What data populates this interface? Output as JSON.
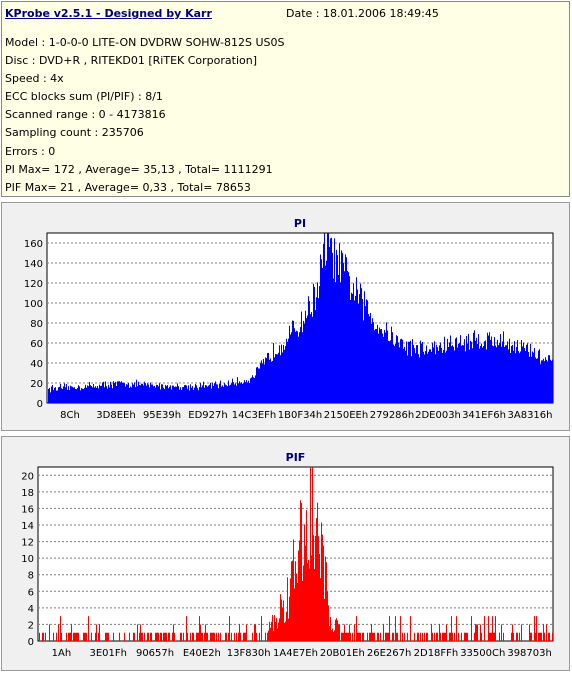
{
  "header": {
    "title": "KProbe v2.5.1 - Designed by Karr",
    "date": "Date : 18.01.2006 18:49:45",
    "lines": [
      "Model : 1-0-0-0 LITE-ON DVDRW SOHW-812S  US0S",
      "Disc : DVD+R , RITEKD01 [RiTEK Corporation]",
      "Speed : 4x",
      "ECC blocks sum (PI/PIF) : 8/1",
      "Scanned range : 0 - 4173816",
      "Sampling count : 235706",
      "Errors : 0",
      "PI Max= 172 , Average= 35,13 , Total= 1111291",
      "PIF Max= 21 , Average= 0,33 , Total= 78653"
    ]
  },
  "colors": {
    "info_background": "#ffffe6",
    "panel_background": "#f0f0f0",
    "title_color": "#000080",
    "pi_color": "#0000ff",
    "pif_color": "#ff0000"
  },
  "chart_data": [
    {
      "type": "bar",
      "title": "PI",
      "xlabel": "",
      "ylabel": "",
      "ylim": [
        0,
        170
      ],
      "y_ticks": [
        0,
        20,
        40,
        60,
        80,
        100,
        120,
        140,
        160
      ],
      "x_tick_labels": [
        "8Ch",
        "3D8EEh",
        "95E39h",
        "ED927h",
        "14C3EFh",
        "1B0F34h",
        "2150EEh",
        "279286h",
        "2DE003h",
        "341EF6h",
        "3A8316h"
      ],
      "grid": true,
      "color": "#0000ff",
      "x": [
        0,
        0.05,
        0.1,
        0.15,
        0.2,
        0.25,
        0.3,
        0.35,
        0.4,
        0.42,
        0.45,
        0.5,
        0.53,
        0.555,
        0.56,
        0.58,
        0.6,
        0.65,
        0.7,
        0.75,
        0.8,
        0.85,
        0.9,
        0.95,
        1.0
      ],
      "values": [
        15,
        16,
        18,
        20,
        18,
        17,
        17,
        19,
        24,
        35,
        55,
        80,
        110,
        168,
        150,
        140,
        120,
        82,
        60,
        54,
        60,
        65,
        63,
        55,
        40
      ]
    },
    {
      "type": "bar",
      "title": "PIF",
      "xlabel": "",
      "ylabel": "",
      "ylim": [
        0,
        21
      ],
      "y_ticks": [
        0,
        2,
        4,
        6,
        8,
        10,
        12,
        14,
        16,
        18,
        20
      ],
      "x_tick_labels": [
        "1Ah",
        "3E01Fh",
        "90657h",
        "E40E2h",
        "13F830h",
        "1A4E7Eh",
        "20B01Eh",
        "26E267h",
        "2D18FFh",
        "33500Ch",
        "398703h"
      ],
      "grid": true,
      "color": "#ff0000",
      "x": [
        0,
        0.1,
        0.2,
        0.3,
        0.38,
        0.4,
        0.43,
        0.46,
        0.49,
        0.5,
        0.52,
        0.53,
        0.55,
        0.57,
        0.6,
        0.7,
        0.8,
        0.9,
        1.0
      ],
      "values": [
        0,
        0,
        0,
        0,
        0,
        0.5,
        1,
        3,
        8,
        12,
        16,
        21,
        12,
        3,
        0.5,
        0,
        0,
        0,
        0
      ]
    }
  ]
}
